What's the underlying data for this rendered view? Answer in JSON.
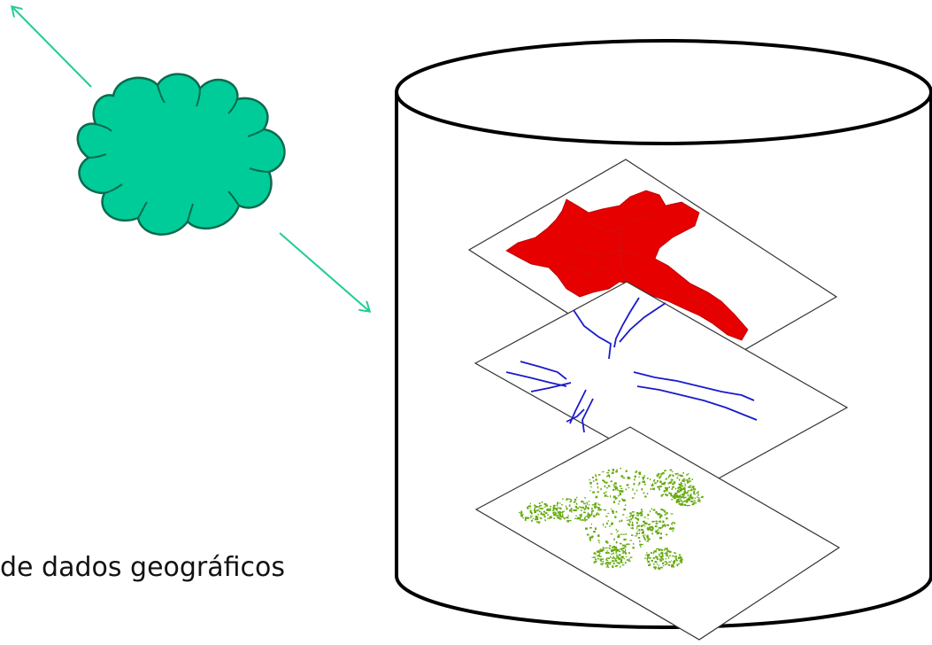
{
  "caption": "de dados geográficos",
  "colors": {
    "cloud_fill": "#00cc99",
    "cloud_stroke": "#0b6b4e",
    "arrow": "#22cc99",
    "cylinder_stroke": "#000000",
    "layer_polygons": "#e60000",
    "layer_rivers": "#1a1acc",
    "layer_vegetation": "#66aa11"
  },
  "layers": [
    {
      "name": "polygon-layer"
    },
    {
      "name": "river-layer"
    },
    {
      "name": "vegetation-layer"
    }
  ]
}
